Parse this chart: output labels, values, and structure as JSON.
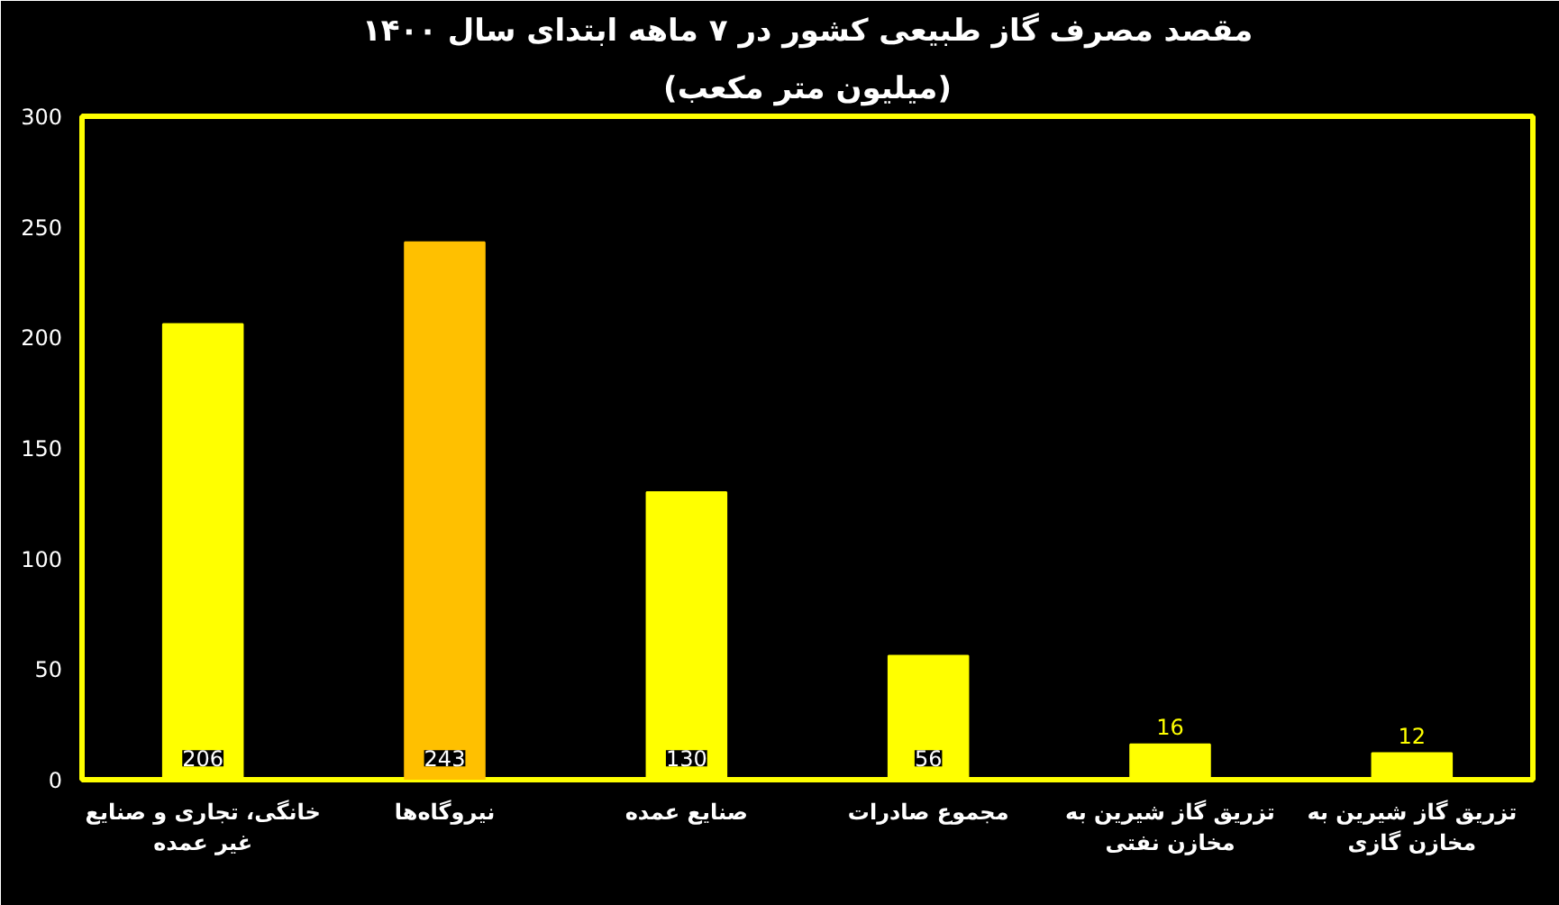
{
  "chart_data": {
    "type": "bar",
    "title": "مقصد مصرف گاز طبیعی کشور در ۷ ماهه ابتدای سال ۱۴۰۰",
    "subtitle": "(میلیون متر مکعب)",
    "categories": [
      "خانگی، تجاری و صنایع غیر عمده",
      "نیروگاه‌ها",
      "صنایع عمده",
      "مجموع صادرات",
      "تزریق گاز شیرین به مخازن نفتی",
      "تزریق گاز شیرین به مخازن گازی"
    ],
    "values": [
      206,
      243,
      130,
      56,
      16,
      12
    ],
    "colors": [
      "#ffff00",
      "#ffc000",
      "#ffff00",
      "#ffff00",
      "#ffff00",
      "#ffff00"
    ],
    "ylim": [
      0,
      300
    ],
    "yticks": [
      0,
      50,
      100,
      150,
      200,
      250,
      300
    ],
    "grid": false,
    "data_labels": true
  }
}
